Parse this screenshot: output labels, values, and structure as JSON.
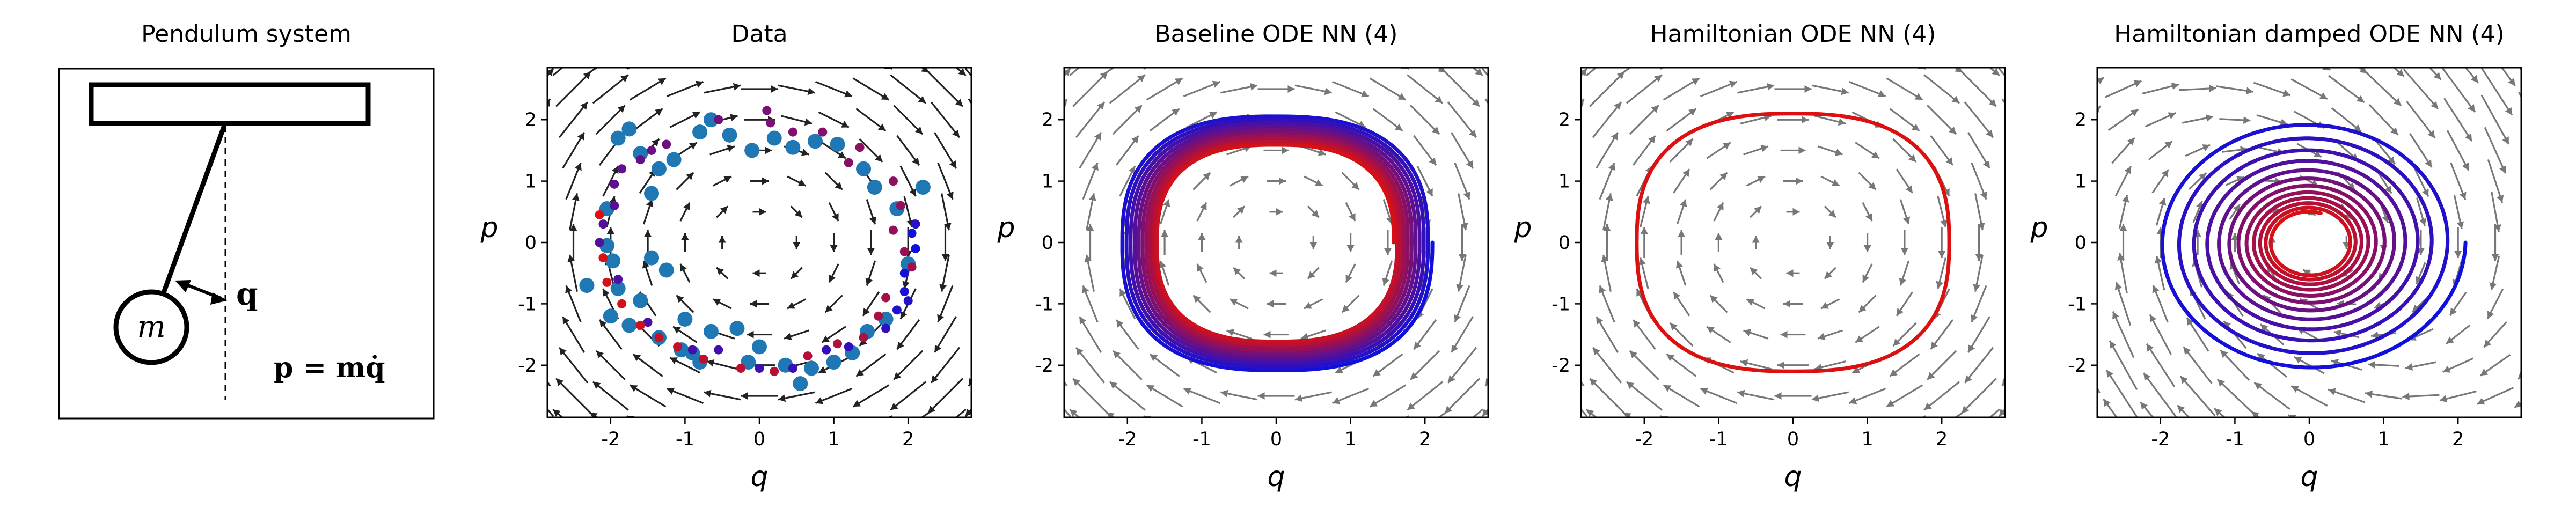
{
  "figure": {
    "background": "#ffffff"
  },
  "schematic": {
    "title": "Pendulum system",
    "mass_label": "m",
    "q_label": "q",
    "p_label": "p = mq̇",
    "colors": {
      "stroke": "#000000"
    }
  },
  "chart_data": [
    {
      "type": "scatter",
      "title": "Data",
      "xlabel": "q",
      "ylabel": "p",
      "xlim": [
        -2.85,
        2.85
      ],
      "ylim": [
        -2.85,
        2.85
      ],
      "xticks": [
        -2,
        -1,
        0,
        1,
        2
      ],
      "yticks": [
        -2,
        -1,
        0,
        1,
        2
      ],
      "grid": false,
      "vector_field": {
        "kind": "undamped",
        "color": "#222222",
        "grid_step": 0.5
      },
      "series": [
        {
          "kind": "observations",
          "color": "#1f77b4",
          "points": [
            [
              -2.32,
              -0.7
            ],
            [
              -2.05,
              -0.05
            ],
            [
              -1.97,
              -0.3
            ],
            [
              -2.05,
              0.55
            ],
            [
              -1.6,
              1.45
            ],
            [
              -1.35,
              1.2
            ],
            [
              -1.9,
              1.7
            ],
            [
              -1.75,
              1.85
            ],
            [
              -1.45,
              0.8
            ],
            [
              -1.15,
              1.35
            ],
            [
              -0.8,
              1.8
            ],
            [
              -0.65,
              2.0
            ],
            [
              -0.4,
              1.75
            ],
            [
              -0.1,
              1.5
            ],
            [
              0.2,
              1.7
            ],
            [
              0.45,
              1.55
            ],
            [
              0.75,
              1.65
            ],
            [
              1.05,
              1.6
            ],
            [
              1.4,
              1.2
            ],
            [
              1.55,
              0.9
            ],
            [
              1.85,
              0.55
            ],
            [
              2.2,
              0.9
            ],
            [
              2.0,
              -0.35
            ],
            [
              1.7,
              -1.25
            ],
            [
              1.45,
              -1.45
            ],
            [
              1.25,
              -1.8
            ],
            [
              1.0,
              -1.95
            ],
            [
              0.7,
              -2.05
            ],
            [
              0.55,
              -2.3
            ],
            [
              0.35,
              -2.0
            ],
            [
              0.0,
              -1.7
            ],
            [
              -0.3,
              -1.4
            ],
            [
              -0.65,
              -1.45
            ],
            [
              -1.0,
              -1.25
            ],
            [
              -1.35,
              -1.55
            ],
            [
              -1.75,
              -1.35
            ],
            [
              -2.0,
              -1.2
            ],
            [
              -1.6,
              -0.95
            ],
            [
              -1.45,
              -0.25
            ],
            [
              -1.25,
              -0.45
            ],
            [
              -1.05,
              -1.75
            ],
            [
              -0.8,
              -1.95
            ],
            [
              -0.9,
              -1.8
            ],
            [
              -1.9,
              -0.75
            ],
            [
              -0.15,
              -1.95
            ]
          ]
        },
        {
          "kind": "trajectory_samples",
          "color_start": "#1010dd",
          "color_end": "#dd1010",
          "points": [
            [
              2.1,
              -0.1
            ],
            [
              2.05,
              0.15
            ],
            [
              1.95,
              -0.5
            ],
            [
              1.95,
              -0.8
            ],
            [
              1.85,
              -1.1
            ],
            [
              2.0,
              -0.95
            ],
            [
              2.1,
              0.3
            ],
            [
              1.7,
              -1.4
            ],
            [
              1.2,
              -1.7
            ],
            [
              0.9,
              -1.75
            ],
            [
              0.45,
              -2.05
            ],
            [
              0.0,
              -2.05
            ],
            [
              -0.55,
              -1.75
            ],
            [
              -0.9,
              -1.75
            ],
            [
              -1.5,
              -1.3
            ],
            [
              -1.9,
              -0.6
            ],
            [
              -2.15,
              0.0
            ],
            [
              -2.1,
              0.3
            ],
            [
              -1.95,
              0.6
            ],
            [
              -1.95,
              0.95
            ],
            [
              -1.85,
              1.2
            ],
            [
              -1.6,
              1.35
            ],
            [
              -1.45,
              1.5
            ],
            [
              -1.25,
              1.6
            ],
            [
              -0.55,
              2.0
            ],
            [
              0.1,
              2.15
            ],
            [
              0.15,
              1.95
            ],
            [
              0.45,
              1.8
            ],
            [
              0.85,
              1.8
            ],
            [
              1.2,
              1.3
            ],
            [
              1.35,
              1.55
            ],
            [
              1.8,
              1.0
            ],
            [
              1.9,
              0.6
            ],
            [
              1.8,
              0.2
            ],
            [
              1.95,
              -0.15
            ],
            [
              2.05,
              -0.4
            ],
            [
              1.7,
              -0.9
            ],
            [
              1.6,
              -1.2
            ],
            [
              1.4,
              -1.55
            ],
            [
              1.05,
              -1.65
            ],
            [
              0.65,
              -1.85
            ],
            [
              0.2,
              -2.1
            ],
            [
              -0.25,
              -2.05
            ],
            [
              -0.75,
              -1.9
            ],
            [
              -1.1,
              -1.7
            ],
            [
              -1.35,
              -1.55
            ],
            [
              -1.6,
              -1.35
            ],
            [
              -1.85,
              -1.0
            ],
            [
              -2.05,
              -0.65
            ],
            [
              -2.1,
              -0.25
            ],
            [
              -2.15,
              0.45
            ]
          ]
        }
      ]
    },
    {
      "type": "line",
      "title": "Baseline ODE NN (4)",
      "xlabel": "q",
      "ylabel": "p",
      "xlim": [
        -2.85,
        2.85
      ],
      "ylim": [
        -2.85,
        2.85
      ],
      "xticks": [
        -2,
        -1,
        0,
        1,
        2
      ],
      "yticks": [
        -2,
        -1,
        0,
        1,
        2
      ],
      "grid": false,
      "vector_field": {
        "kind": "undamped",
        "color": "#777777",
        "grid_step": 0.5
      },
      "series": [
        {
          "kind": "trajectory",
          "color_start": "#1010dd",
          "color_end": "#dd1010",
          "start": [
            2.1,
            0.0
          ],
          "turns": 10,
          "radius_start": 2.1,
          "radius_end": 1.58,
          "shape_exponent": 2.6,
          "turn_direction": "clockwise"
        }
      ]
    },
    {
      "type": "line",
      "title": "Hamiltonian ODE NN (4)",
      "xlabel": "q",
      "ylabel": "p",
      "xlim": [
        -2.85,
        2.85
      ],
      "ylim": [
        -2.85,
        2.85
      ],
      "xticks": [
        -2,
        -1,
        0,
        1,
        2
      ],
      "yticks": [
        -2,
        -1,
        0,
        1,
        2
      ],
      "grid": false,
      "vector_field": {
        "kind": "undamped",
        "color": "#777777",
        "grid_step": 0.5
      },
      "series": [
        {
          "kind": "trajectory",
          "color_start": "#dd1010",
          "color_end": "#dd1010",
          "start": [
            2.1,
            0.0
          ],
          "turns": 1,
          "radius_start": 2.1,
          "radius_end": 2.1,
          "shape_exponent": 2.6,
          "turn_direction": "clockwise"
        }
      ]
    },
    {
      "type": "line",
      "title": "Hamiltonian damped ODE NN (4)",
      "xlabel": "q",
      "ylabel": "p",
      "xlim": [
        -2.85,
        2.85
      ],
      "ylim": [
        -2.85,
        2.85
      ],
      "xticks": [
        -2,
        -1,
        0,
        1,
        2
      ],
      "yticks": [
        -2,
        -1,
        0,
        1,
        2
      ],
      "grid": false,
      "vector_field": {
        "kind": "damped",
        "color": "#777777",
        "grid_step": 0.5
      },
      "series": [
        {
          "kind": "trajectory",
          "color_start": "#1010dd",
          "color_end": "#dd1010",
          "start": [
            2.1,
            0.0
          ],
          "turns": 11.8,
          "radius_start": 2.1,
          "radius_end": 0.5,
          "shape_exponent": 2.0,
          "turn_direction": "clockwise"
        }
      ]
    }
  ]
}
